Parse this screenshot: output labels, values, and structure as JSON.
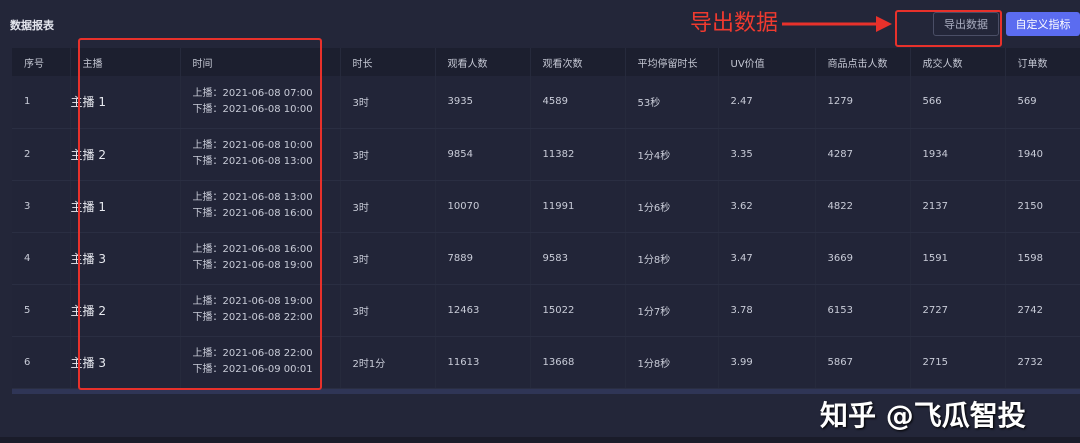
{
  "title": "数据报表",
  "buttons": {
    "export": "导出数据",
    "custom": "自定义指标"
  },
  "columns": [
    "序号",
    "主播",
    "时间",
    "时长",
    "观看人数",
    "观看次数",
    "平均停留时长",
    "UV价值",
    "商品点击人数",
    "成交人数",
    "订单数"
  ],
  "rows": [
    {
      "no": "1",
      "anchor": "主播 1",
      "start": "上播：2021-06-08 07:00",
      "end": "下播：2021-06-08 10:00",
      "duration": "3时",
      "viewers": "3935",
      "views": "4589",
      "avg_stay": "53秒",
      "uv": "2.47",
      "clicks": "1279",
      "buyers": "566",
      "orders": "569"
    },
    {
      "no": "2",
      "anchor": "主播 2",
      "start": "上播：2021-06-08 10:00",
      "end": "下播：2021-06-08 13:00",
      "duration": "3时",
      "viewers": "9854",
      "views": "11382",
      "avg_stay": "1分4秒",
      "uv": "3.35",
      "clicks": "4287",
      "buyers": "1934",
      "orders": "1940"
    },
    {
      "no": "3",
      "anchor": "主播 1",
      "start": "上播：2021-06-08 13:00",
      "end": "下播：2021-06-08 16:00",
      "duration": "3时",
      "viewers": "10070",
      "views": "11991",
      "avg_stay": "1分6秒",
      "uv": "3.62",
      "clicks": "4822",
      "buyers": "2137",
      "orders": "2150"
    },
    {
      "no": "4",
      "anchor": "主播 3",
      "start": "上播：2021-06-08 16:00",
      "end": "下播：2021-06-08 19:00",
      "duration": "3时",
      "viewers": "7889",
      "views": "9583",
      "avg_stay": "1分8秒",
      "uv": "3.47",
      "clicks": "3669",
      "buyers": "1591",
      "orders": "1598"
    },
    {
      "no": "5",
      "anchor": "主播 2",
      "start": "上播：2021-06-08 19:00",
      "end": "下播：2021-06-08 22:00",
      "duration": "3时",
      "viewers": "12463",
      "views": "15022",
      "avg_stay": "1分7秒",
      "uv": "3.78",
      "clicks": "6153",
      "buyers": "2727",
      "orders": "2742"
    },
    {
      "no": "6",
      "anchor": "主播 3",
      "start": "上播：2021-06-08 22:00",
      "end": "下播：2021-06-09 00:01",
      "duration": "2时1分",
      "viewers": "11613",
      "views": "13668",
      "avg_stay": "1分8秒",
      "uv": "3.99",
      "clicks": "5867",
      "buyers": "2715",
      "orders": "2732"
    }
  ],
  "annotation": "导出数据",
  "watermark": "知乎 @飞瓜智投",
  "colors": {
    "annotation": "#e8312b",
    "primary_button": "#5b6cf0"
  }
}
